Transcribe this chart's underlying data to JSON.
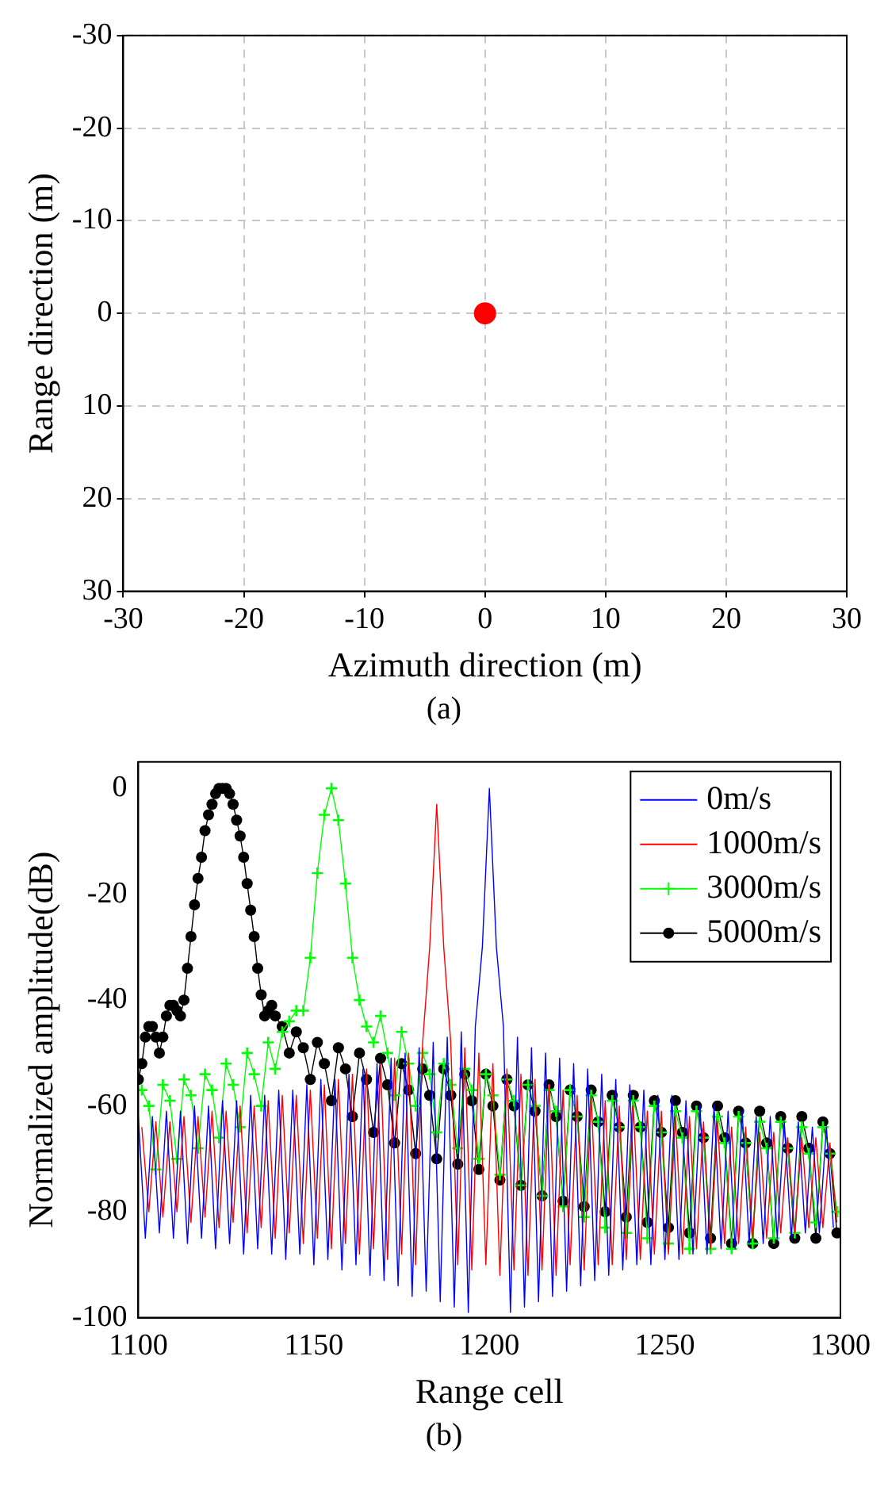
{
  "chart_data": [
    {
      "type": "scatter",
      "xlabel": "Azimuth direction (m)",
      "ylabel": "Range direction (m)",
      "annotations": [
        "(a)"
      ],
      "x": [
        0
      ],
      "xlim": [
        -30,
        30
      ],
      "xticks": [
        -30,
        -20,
        -10,
        0,
        10,
        20,
        30
      ],
      "ylim": [
        30,
        -30
      ],
      "yticks": [
        -30,
        -20,
        -10,
        0,
        10,
        20,
        30
      ],
      "grid": true,
      "marker": "circle",
      "series": [
        {
          "color": "#ff0000",
          "values": [
            0
          ]
        }
      ]
    },
    {
      "type": "line",
      "xlabel": "Range cell",
      "ylabel": "Normalized amplitude(dB)",
      "annotations": [
        "(b)"
      ],
      "xlim": [
        1100,
        1300
      ],
      "xticks": [
        1100,
        1150,
        1200,
        1250,
        1300
      ],
      "ylim": [
        -100,
        5
      ],
      "yticks": [
        -100,
        -80,
        -60,
        -40,
        -20,
        0
      ],
      "legend": "top right",
      "series": [
        {
          "name": "0m/s",
          "color": "#0000ff",
          "marker": "none",
          "x": [
            1100,
            1102,
            1104,
            1106,
            1108,
            1110,
            1112,
            1114,
            1116,
            1118,
            1120,
            1122,
            1124,
            1126,
            1128,
            1130,
            1132,
            1134,
            1136,
            1138,
            1140,
            1142,
            1144,
            1146,
            1148,
            1150,
            1152,
            1154,
            1156,
            1158,
            1160,
            1162,
            1164,
            1166,
            1168,
            1170,
            1172,
            1174,
            1176,
            1178,
            1180,
            1182,
            1184,
            1186,
            1188,
            1190,
            1192,
            1194,
            1196,
            1198,
            1200,
            1202,
            1204,
            1206,
            1208,
            1210,
            1212,
            1214,
            1216,
            1218,
            1220,
            1222,
            1224,
            1226,
            1228,
            1230,
            1232,
            1234,
            1236,
            1238,
            1240,
            1242,
            1244,
            1246,
            1248,
            1250,
            1252,
            1254,
            1256,
            1258,
            1260,
            1262,
            1264,
            1266,
            1268,
            1270,
            1272,
            1274,
            1276,
            1278,
            1280,
            1282,
            1284,
            1286,
            1288,
            1290,
            1292,
            1294,
            1296,
            1298
          ],
          "values": [
            -62,
            -85,
            -62,
            -84,
            -61,
            -85,
            -61,
            -86,
            -60,
            -85,
            -60,
            -87,
            -59,
            -86,
            -59,
            -88,
            -58,
            -87,
            -58,
            -88,
            -57,
            -89,
            -57,
            -88,
            -56,
            -90,
            -55,
            -89,
            -55,
            -91,
            -54,
            -90,
            -53,
            -92,
            -52,
            -93,
            -51,
            -94,
            -50,
            -96,
            -49,
            -95,
            -48,
            -97,
            -47,
            -98,
            -46,
            -99,
            -45,
            -30,
            0,
            -30,
            -45,
            -99,
            -47,
            -98,
            -49,
            -97,
            -50,
            -96,
            -51,
            -95,
            -52,
            -94,
            -53,
            -93,
            -54,
            -92,
            -55,
            -91,
            -56,
            -90,
            -57,
            -90,
            -58,
            -89,
            -58,
            -89,
            -59,
            -88,
            -60,
            -88,
            -60,
            -87,
            -61,
            -87,
            -61,
            -86,
            -62,
            -86,
            -62,
            -85,
            -63,
            -85,
            -63,
            -84,
            -64,
            -84,
            -64,
            -83
          ]
        },
        {
          "name": "1000m/s",
          "color": "#ff0000",
          "marker": "none",
          "x": [
            1101,
            1103,
            1105,
            1107,
            1109,
            1111,
            1113,
            1115,
            1117,
            1119,
            1121,
            1123,
            1125,
            1127,
            1129,
            1131,
            1133,
            1135,
            1137,
            1139,
            1141,
            1143,
            1145,
            1147,
            1149,
            1151,
            1153,
            1155,
            1157,
            1159,
            1161,
            1163,
            1165,
            1167,
            1169,
            1171,
            1173,
            1175,
            1177,
            1179,
            1181,
            1183,
            1185,
            1187,
            1189,
            1191,
            1193,
            1195,
            1197,
            1199,
            1201,
            1203,
            1205,
            1207,
            1209,
            1211,
            1213,
            1215,
            1217,
            1219,
            1221,
            1223,
            1225,
            1227,
            1229,
            1231,
            1233,
            1235,
            1237,
            1239,
            1241,
            1243,
            1245,
            1247,
            1249,
            1251,
            1253,
            1255,
            1257,
            1259,
            1261,
            1263,
            1265,
            1267,
            1269,
            1271,
            1273,
            1275,
            1277,
            1279,
            1281,
            1283,
            1285,
            1287,
            1289,
            1291,
            1293,
            1295,
            1297,
            1299
          ],
          "values": [
            -64,
            -80,
            -63,
            -81,
            -63,
            -80,
            -62,
            -82,
            -62,
            -81,
            -61,
            -83,
            -61,
            -82,
            -60,
            -84,
            -60,
            -83,
            -59,
            -85,
            -58,
            -84,
            -58,
            -86,
            -57,
            -85,
            -56,
            -87,
            -55,
            -86,
            -54,
            -88,
            -53,
            -87,
            -52,
            -89,
            -51,
            -88,
            -50,
            -90,
            -48,
            -30,
            -3,
            -30,
            -48,
            -90,
            -49,
            -91,
            -50,
            -90,
            -52,
            -92,
            -53,
            -91,
            -54,
            -92,
            -55,
            -91,
            -56,
            -92,
            -57,
            -90,
            -58,
            -91,
            -58,
            -90,
            -59,
            -90,
            -60,
            -89,
            -60,
            -89,
            -61,
            -88,
            -61,
            -88,
            -62,
            -88,
            -62,
            -87,
            -63,
            -87,
            -63,
            -86,
            -64,
            -86,
            -64,
            -85,
            -65,
            -85,
            -65,
            -84,
            -66,
            -84,
            -66,
            -83,
            -66,
            -83,
            -67,
            -82
          ]
        },
        {
          "name": "3000m/s",
          "color": "#00ff00",
          "marker": "cross",
          "x": [
            1101,
            1103,
            1105,
            1107,
            1109,
            1111,
            1113,
            1115,
            1117,
            1119,
            1121,
            1123,
            1125,
            1127,
            1129,
            1131,
            1133,
            1135,
            1137,
            1139,
            1141,
            1143,
            1145,
            1147,
            1149,
            1151,
            1153,
            1155,
            1157,
            1159,
            1161,
            1163,
            1165,
            1167,
            1169,
            1171,
            1173,
            1175,
            1177,
            1179,
            1181,
            1183,
            1185,
            1187,
            1189,
            1191,
            1193,
            1195,
            1197,
            1199,
            1201,
            1203,
            1205,
            1207,
            1209,
            1211,
            1213,
            1215,
            1217,
            1219,
            1221,
            1223,
            1225,
            1227,
            1229,
            1231,
            1233,
            1235,
            1237,
            1239,
            1241,
            1243,
            1245,
            1247,
            1249,
            1251,
            1253,
            1255,
            1257,
            1259,
            1261,
            1263,
            1265,
            1267,
            1269,
            1271,
            1273,
            1275,
            1277,
            1279,
            1281,
            1283,
            1285,
            1287,
            1289,
            1291,
            1293,
            1295,
            1297,
            1299
          ],
          "values": [
            -57,
            -60,
            -72,
            -56,
            -59,
            -70,
            -55,
            -58,
            -68,
            -54,
            -57,
            -66,
            -52,
            -56,
            -64,
            -50,
            -54,
            -60,
            -48,
            -53,
            -46,
            -44,
            -42,
            -42,
            -32,
            -16,
            -5,
            0,
            -6,
            -18,
            -32,
            -40,
            -45,
            -48,
            -43,
            -50,
            -58,
            -46,
            -52,
            -60,
            -50,
            -54,
            -65,
            -52,
            -56,
            -68,
            -53,
            -57,
            -70,
            -54,
            -58,
            -73,
            -55,
            -59,
            -75,
            -56,
            -60,
            -77,
            -57,
            -61,
            -79,
            -57,
            -62,
            -81,
            -58,
            -63,
            -83,
            -59,
            -64,
            -84,
            -59,
            -64,
            -85,
            -60,
            -65,
            -86,
            -61,
            -66,
            -87,
            -61,
            -66,
            -87,
            -62,
            -67,
            -87,
            -62,
            -67,
            -86,
            -63,
            -68,
            -85,
            -63,
            -68,
            -84,
            -64,
            -69,
            -82,
            -64,
            -69,
            -80
          ]
        },
        {
          "name": "5000m/s",
          "color": "#000000",
          "marker": "circle",
          "x": [
            1100,
            1101,
            1102,
            1103,
            1104,
            1105,
            1106,
            1107,
            1108,
            1109,
            1110,
            1111,
            1112,
            1113,
            1114,
            1115,
            1116,
            1117,
            1118,
            1119,
            1120,
            1121,
            1122,
            1123,
            1124,
            1125,
            1126,
            1127,
            1128,
            1129,
            1130,
            1131,
            1132,
            1133,
            1134,
            1135,
            1136,
            1137,
            1138,
            1139,
            1141,
            1143,
            1145,
            1147,
            1149,
            1151,
            1153,
            1155,
            1157,
            1159,
            1161,
            1163,
            1165,
            1167,
            1169,
            1171,
            1173,
            1175,
            1177,
            1179,
            1181,
            1183,
            1185,
            1187,
            1189,
            1191,
            1193,
            1195,
            1197,
            1199,
            1201,
            1203,
            1205,
            1207,
            1209,
            1211,
            1213,
            1215,
            1217,
            1219,
            1221,
            1223,
            1225,
            1227,
            1229,
            1231,
            1233,
            1235,
            1237,
            1239,
            1241,
            1243,
            1245,
            1247,
            1249,
            1251,
            1253,
            1255,
            1257,
            1259,
            1261,
            1263,
            1265,
            1267,
            1269,
            1271,
            1273,
            1275,
            1277,
            1279,
            1281,
            1283,
            1285,
            1287,
            1289,
            1291,
            1293,
            1295,
            1297,
            1299
          ],
          "values": [
            -55,
            -52,
            -47,
            -45,
            -45,
            -47,
            -50,
            -47,
            -43,
            -41,
            -41,
            -42,
            -43,
            -40,
            -34,
            -28,
            -22,
            -17,
            -13,
            -8,
            -5,
            -3,
            -1,
            0,
            0,
            0,
            -1,
            -3,
            -6,
            -9,
            -13,
            -18,
            -23,
            -28,
            -34,
            -39,
            -43,
            -42,
            -41,
            -43,
            -45,
            -50,
            -46,
            -49,
            -55,
            -48,
            -52,
            -59,
            -49,
            -53,
            -62,
            -50,
            -55,
            -65,
            -51,
            -56,
            -67,
            -52,
            -57,
            -69,
            -53,
            -58,
            -70,
            -53,
            -58,
            -71,
            -54,
            -59,
            -72,
            -54,
            -60,
            -74,
            -55,
            -60,
            -75,
            -56,
            -61,
            -77,
            -56,
            -62,
            -78,
            -57,
            -62,
            -79,
            -57,
            -63,
            -80,
            -58,
            -64,
            -81,
            -58,
            -64,
            -82,
            -59,
            -65,
            -83,
            -59,
            -65,
            -84,
            -60,
            -66,
            -85,
            -60,
            -66,
            -86,
            -61,
            -67,
            -86,
            -61,
            -67,
            -86,
            -62,
            -68,
            -85,
            -62,
            -68,
            -85,
            -63,
            -69,
            -84
          ]
        }
      ]
    }
  ]
}
